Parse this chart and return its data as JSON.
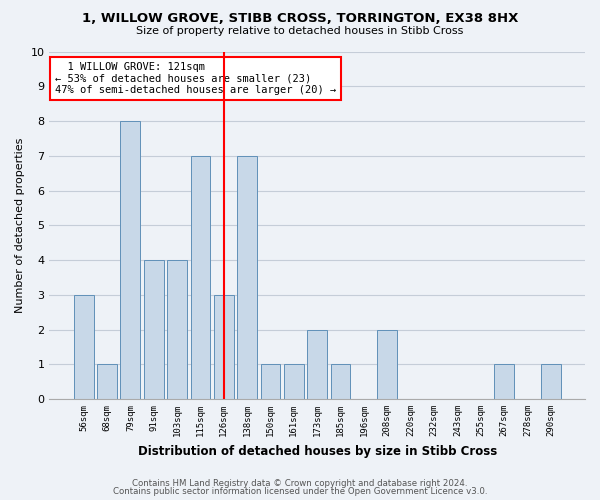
{
  "title": "1, WILLOW GROVE, STIBB CROSS, TORRINGTON, EX38 8HX",
  "subtitle": "Size of property relative to detached houses in Stibb Cross",
  "xlabel": "Distribution of detached houses by size in Stibb Cross",
  "ylabel": "Number of detached properties",
  "bin_labels": [
    "56sqm",
    "68sqm",
    "79sqm",
    "91sqm",
    "103sqm",
    "115sqm",
    "126sqm",
    "138sqm",
    "150sqm",
    "161sqm",
    "173sqm",
    "185sqm",
    "196sqm",
    "208sqm",
    "220sqm",
    "232sqm",
    "243sqm",
    "255sqm",
    "267sqm",
    "278sqm",
    "290sqm"
  ],
  "bar_values": [
    3,
    1,
    8,
    4,
    4,
    7,
    3,
    7,
    1,
    1,
    2,
    1,
    0,
    2,
    0,
    0,
    0,
    0,
    1,
    0,
    1
  ],
  "bar_color": "#c8d8e8",
  "bar_edge_color": "#6090b8",
  "reference_line_index": 6,
  "annotation_text": "  1 WILLOW GROVE: 121sqm\n← 53% of detached houses are smaller (23)\n47% of semi-detached houses are larger (20) →",
  "annotation_box_color": "white",
  "annotation_box_edge_color": "red",
  "ylim": [
    0,
    10
  ],
  "yticks": [
    0,
    1,
    2,
    3,
    4,
    5,
    6,
    7,
    8,
    9,
    10
  ],
  "footer_line1": "Contains HM Land Registry data © Crown copyright and database right 2024.",
  "footer_line2": "Contains public sector information licensed under the Open Government Licence v3.0.",
  "bg_color": "#eef2f7",
  "plot_bg_color": "#eef2f7",
  "grid_color": "#c5cdd8"
}
